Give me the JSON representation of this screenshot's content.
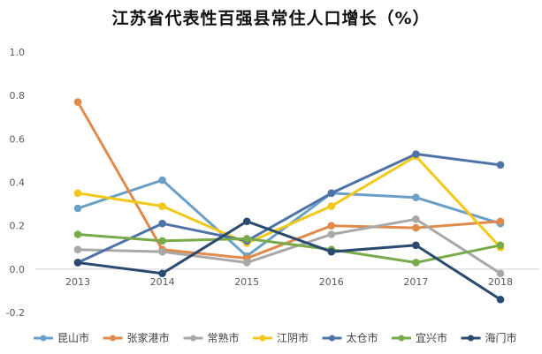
{
  "chart_data": {
    "type": "line",
    "title": "江苏省代表性百强县常住人口增长（%）",
    "xlabel": "",
    "ylabel": "",
    "categories": [
      "2013",
      "2014",
      "2015",
      "2016",
      "2017",
      "2018"
    ],
    "ylim": [
      -0.2,
      1.0
    ],
    "yticks": [
      -0.2,
      0.0,
      0.2,
      0.4,
      0.6,
      0.8,
      1.0
    ],
    "ytick_labels": [
      "-0.2",
      "0.0",
      "0.2",
      "0.4",
      "0.6",
      "0.8",
      "1.0"
    ],
    "grid": false,
    "legend_position": "bottom",
    "series": [
      {
        "name": "昆山市",
        "color": "#6aa0c8",
        "values": [
          0.28,
          0.41,
          0.06,
          0.35,
          0.33,
          0.21
        ]
      },
      {
        "name": "张家港市",
        "color": "#e08a4b",
        "values": [
          0.77,
          0.09,
          0.05,
          0.2,
          0.19,
          0.22
        ]
      },
      {
        "name": "常熟市",
        "color": "#a8a8a8",
        "values": [
          0.09,
          0.08,
          0.03,
          0.16,
          0.23,
          -0.02
        ]
      },
      {
        "name": "江阴市",
        "color": "#f2c81b",
        "values": [
          0.35,
          0.29,
          0.12,
          0.29,
          0.52,
          0.1
        ]
      },
      {
        "name": "太仓市",
        "color": "#4f73a6",
        "values": [
          0.03,
          0.21,
          0.13,
          0.35,
          0.53,
          0.48
        ]
      },
      {
        "name": "宜兴市",
        "color": "#78aa4a",
        "values": [
          0.16,
          0.13,
          0.14,
          0.09,
          0.03,
          0.11
        ]
      },
      {
        "name": "海门市",
        "color": "#2b4a6f",
        "values": [
          0.03,
          -0.02,
          0.22,
          0.08,
          0.11,
          -0.14
        ]
      }
    ]
  }
}
